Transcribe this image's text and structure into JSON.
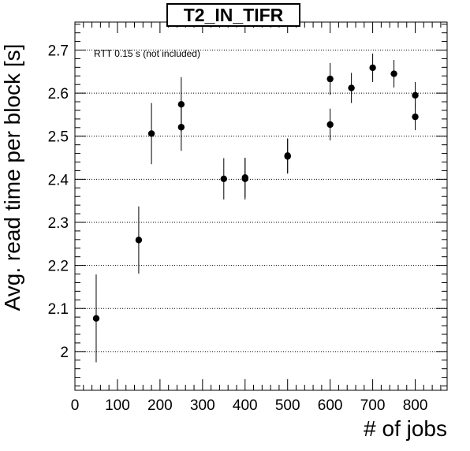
{
  "chart_data": {
    "type": "scatter",
    "title": "T2_IN_TIFR",
    "xlabel": "# of jobs",
    "ylabel": "Avg. read time per block [s]",
    "annotation": "RTT 0.15 s (not included)",
    "xlim": [
      0,
      875
    ],
    "ylim": [
      1.91,
      2.765
    ],
    "xticks": [
      0,
      100,
      200,
      300,
      400,
      500,
      600,
      700,
      800
    ],
    "yticks": [
      2.0,
      2.1,
      2.2,
      2.3,
      2.4,
      2.5,
      2.6,
      2.7
    ],
    "ytick_labels": [
      "2",
      "2.1",
      "2.2",
      "2.3",
      "2.4",
      "2.5",
      "2.6",
      "2.7"
    ],
    "grid": "horizontal dotted",
    "marker_color": "#000000",
    "points": [
      {
        "x": 50,
        "y": 2.077,
        "err": 0.102
      },
      {
        "x": 150,
        "y": 2.259,
        "err": 0.078
      },
      {
        "x": 180,
        "y": 2.506,
        "err": 0.071
      },
      {
        "x": 250,
        "y": 2.574,
        "err": 0.063
      },
      {
        "x": 250,
        "y": 2.521,
        "err": 0.055
      },
      {
        "x": 350,
        "y": 2.401,
        "err": 0.048
      },
      {
        "x": 400,
        "y": 2.401,
        "err": 0.048
      },
      {
        "x": 400,
        "y": 2.404,
        "err": 0.046
      },
      {
        "x": 500,
        "y": 2.455,
        "err": 0.04
      },
      {
        "x": 500,
        "y": 2.453,
        "err": 0.04
      },
      {
        "x": 600,
        "y": 2.633,
        "err": 0.037
      },
      {
        "x": 600,
        "y": 2.527,
        "err": 0.037
      },
      {
        "x": 650,
        "y": 2.612,
        "err": 0.035
      },
      {
        "x": 700,
        "y": 2.659,
        "err": 0.033
      },
      {
        "x": 750,
        "y": 2.645,
        "err": 0.032
      },
      {
        "x": 800,
        "y": 2.595,
        "err": 0.031
      },
      {
        "x": 800,
        "y": 2.545,
        "err": 0.031
      }
    ]
  }
}
